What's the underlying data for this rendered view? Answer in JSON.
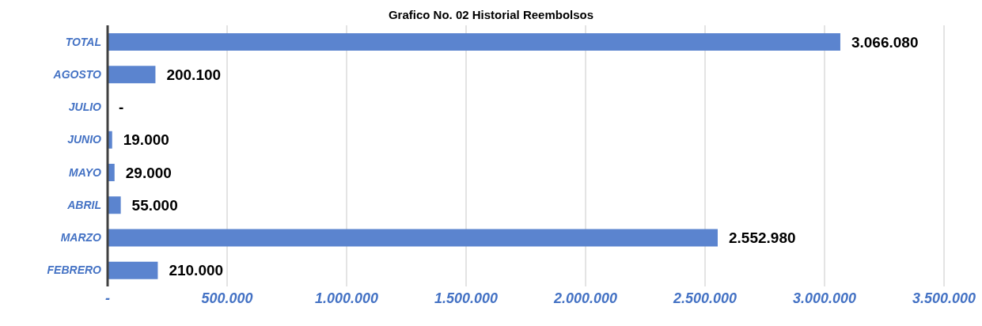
{
  "chart_data": {
    "type": "bar",
    "orientation": "horizontal",
    "title": "Grafico No. 02 Historial Reembolsos",
    "categories": [
      "TOTAL",
      "AGOSTO",
      "JULIO",
      "JUNIO",
      "MAYO",
      "ABRIL",
      "MARZO",
      "FEBRERO"
    ],
    "values": [
      3066080,
      200100,
      0,
      19000,
      29000,
      55000,
      2552980,
      210000
    ],
    "value_labels": [
      "3.066.080",
      "200.100",
      "-",
      "19.000",
      "29.000",
      "55.000",
      "2.552.980",
      "210.000"
    ],
    "color": "#5b84cf",
    "xlim": [
      0,
      3500000
    ],
    "xticks": [
      {
        "value": 0,
        "label": "-"
      },
      {
        "value": 500000,
        "label": "500.000"
      },
      {
        "value": 1000000,
        "label": "1.000.000"
      },
      {
        "value": 1500000,
        "label": "1.500.000"
      },
      {
        "value": 2000000,
        "label": "2.000.000"
      },
      {
        "value": 2500000,
        "label": "2.500.000"
      },
      {
        "value": 3000000,
        "label": "3.000.000"
      },
      {
        "value": 3500000,
        "label": "3.500.000"
      }
    ],
    "grid": "x",
    "legend": false
  }
}
